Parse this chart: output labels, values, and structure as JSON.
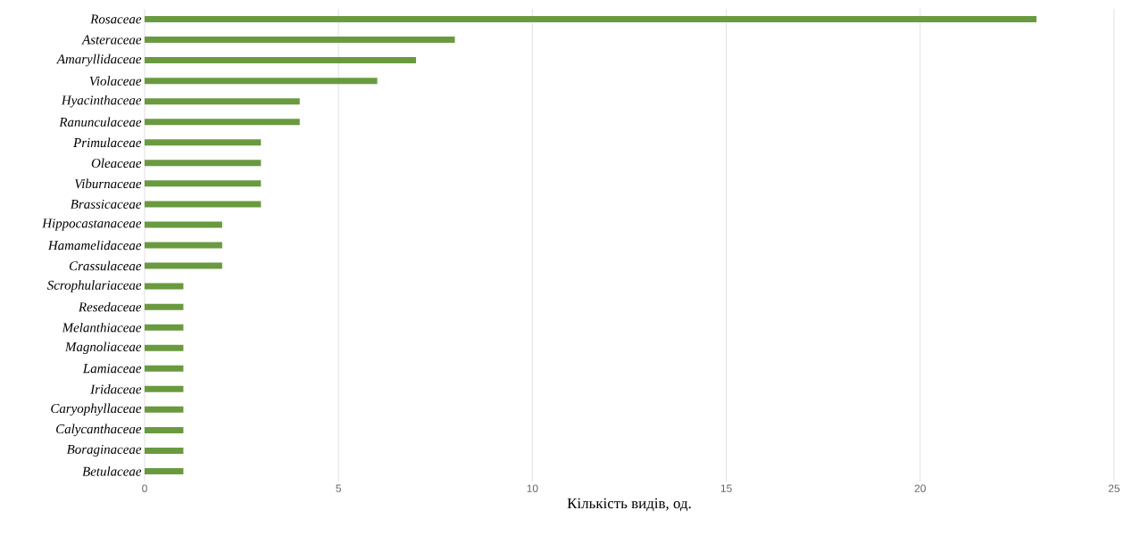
{
  "chart_data": {
    "type": "bar",
    "orientation": "horizontal",
    "xlabel": "Кількість видів, од.",
    "categories": [
      "Rosaceae",
      "Asteraceae",
      "Amaryllidaceae",
      "Violaceae",
      "Hyacinthaceae",
      "Ranunculaceae",
      "Primulaceae",
      "Oleaceae",
      "Viburnaceae",
      "Brassicaceae",
      "Hippocastanaceae",
      "Hamamelidaceae",
      "Crassulaceae",
      "Scrophulariaceae",
      "Resedaceae",
      "Melanthiaceae",
      "Magnoliaceae",
      "Lamiaceae",
      "Iridaceae",
      "Caryophyllaceae",
      "Calycanthaceae",
      "Boraginaceae",
      "Betulaceae"
    ],
    "values": [
      23,
      8,
      7,
      6,
      4,
      4,
      3,
      3,
      3,
      3,
      2,
      2,
      2,
      1,
      1,
      1,
      1,
      1,
      1,
      1,
      1,
      1,
      1
    ],
    "color": "#6a9a3f",
    "xlim": [
      0,
      25
    ],
    "xticks": [
      0,
      5,
      10,
      15,
      20,
      25
    ],
    "grid": "x"
  }
}
